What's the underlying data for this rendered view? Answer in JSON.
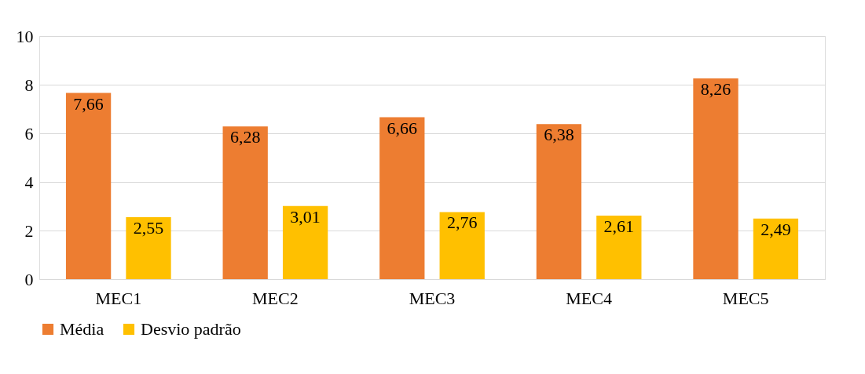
{
  "chart_data": {
    "type": "bar",
    "categories": [
      "MEC1",
      "MEC2",
      "MEC3",
      "MEC4",
      "MEC5"
    ],
    "series": [
      {
        "name": "Média",
        "color": "#ed7d31",
        "values": [
          7.66,
          6.28,
          6.66,
          6.38,
          8.26
        ],
        "value_labels": [
          "7,66",
          "6,28",
          "6,66",
          "6,38",
          "8,26"
        ]
      },
      {
        "name": "Desvio padrão",
        "color": "#ffc000",
        "values": [
          2.55,
          3.01,
          2.76,
          2.61,
          2.49
        ],
        "value_labels": [
          "2,55",
          "3,01",
          "2,76",
          "2,61",
          "2,49"
        ]
      }
    ],
    "ylim": [
      0,
      10
    ],
    "yticks": [
      0,
      2,
      4,
      6,
      8,
      10
    ],
    "grid": "y",
    "legend": "bottom"
  }
}
